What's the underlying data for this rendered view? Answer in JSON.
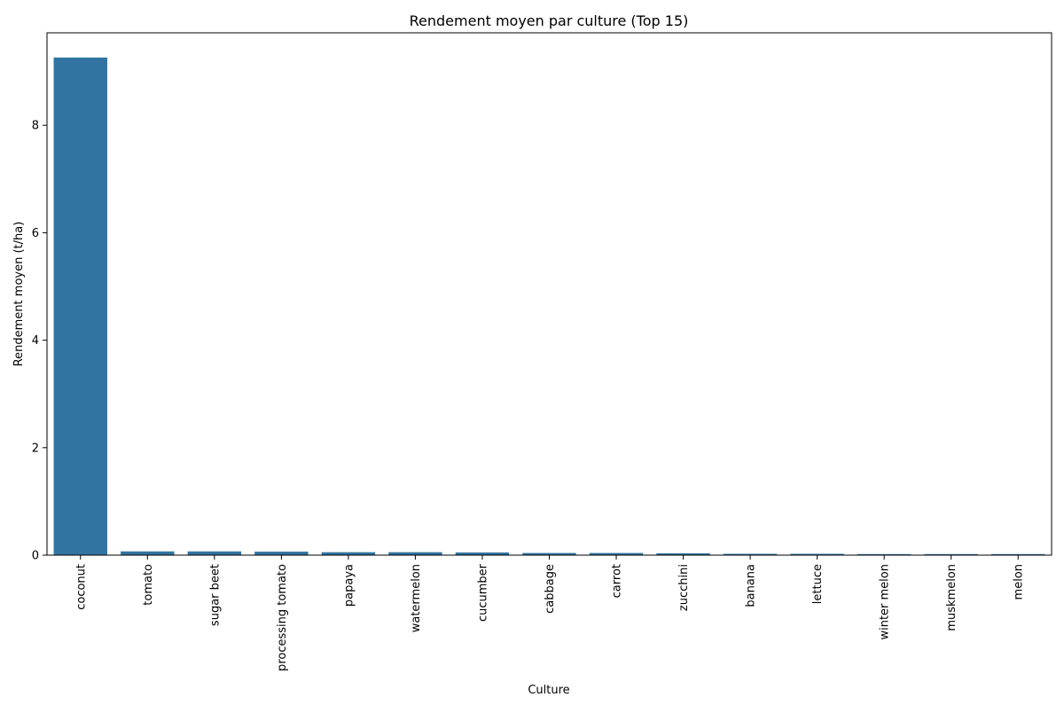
{
  "chart_data": {
    "type": "bar",
    "title": "Rendement moyen par culture (Top 15)",
    "xlabel": "Culture",
    "ylabel": "Rendement moyen (t/ha)",
    "categories": [
      "coconut",
      "tomato",
      "sugar beet",
      "processing tomato",
      "papaya",
      "watermelon",
      "cucumber",
      "cabbage",
      "carrot",
      "zucchini",
      "banana",
      "lettuce",
      "winter melon",
      "muskmelon",
      "melon"
    ],
    "values": [
      9.26,
      0.07,
      0.07,
      0.065,
      0.055,
      0.055,
      0.05,
      0.04,
      0.04,
      0.035,
      0.025,
      0.025,
      0.02,
      0.02,
      0.02
    ],
    "ylim": [
      0,
      9.72
    ],
    "yticks": [
      0,
      2,
      4,
      6,
      8
    ],
    "ytick_labels": [
      "0",
      "2",
      "4",
      "6",
      "8"
    ],
    "bar_color": "#3274a1",
    "grid": false,
    "legend": "none"
  }
}
